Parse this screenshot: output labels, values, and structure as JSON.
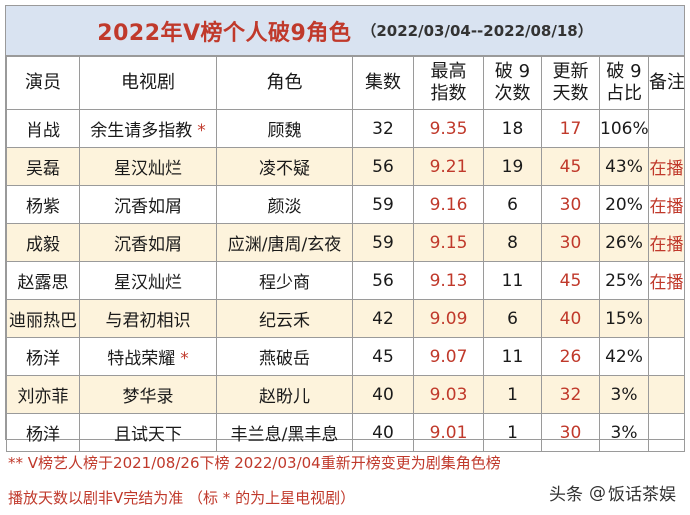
{
  "title": {
    "main": "2022年V榜个人破9角色",
    "range": "（2022/03/04--2022/08/18）"
  },
  "headers": {
    "actor": "演员",
    "drama": "电视剧",
    "role": "角色",
    "episodes": "集数",
    "peak_line1": "最高",
    "peak_line2": "指数",
    "times_line1": "破 9",
    "times_line2": "次数",
    "days_line1": "更新",
    "days_line2": "天数",
    "ratio_line1": "破 9",
    "ratio_line2": "占比",
    "note": "备注"
  },
  "rows": [
    {
      "actor": "肖战",
      "drama": "余生请多指教",
      "star": "*",
      "role": "顾魏",
      "episodes": "32",
      "peak": "9.35",
      "times": "18",
      "days": "17",
      "ratio": "106%",
      "note": ""
    },
    {
      "actor": "吴磊",
      "drama": "星汉灿烂",
      "star": "",
      "role": "凌不疑",
      "episodes": "56",
      "peak": "9.21",
      "times": "19",
      "days": "45",
      "ratio": "43%",
      "note": "在播"
    },
    {
      "actor": "杨紫",
      "drama": "沉香如屑",
      "star": "",
      "role": "颜淡",
      "episodes": "59",
      "peak": "9.16",
      "times": "6",
      "days": "30",
      "ratio": "20%",
      "note": "在播"
    },
    {
      "actor": "成毅",
      "drama": "沉香如屑",
      "star": "",
      "role": "应渊/唐周/玄夜",
      "episodes": "59",
      "peak": "9.15",
      "times": "8",
      "days": "30",
      "ratio": "26%",
      "note": "在播"
    },
    {
      "actor": "赵露思",
      "drama": "星汉灿烂",
      "star": "",
      "role": "程少商",
      "episodes": "56",
      "peak": "9.13",
      "times": "11",
      "days": "45",
      "ratio": "25%",
      "note": "在播"
    },
    {
      "actor": "迪丽热巴",
      "drama": "与君初相识",
      "star": "",
      "role": "纪云禾",
      "episodes": "42",
      "peak": "9.09",
      "times": "6",
      "days": "40",
      "ratio": "15%",
      "note": ""
    },
    {
      "actor": "杨洋",
      "drama": "特战荣耀",
      "star": "*",
      "role": "燕破岳",
      "episodes": "45",
      "peak": "9.07",
      "times": "11",
      "days": "26",
      "ratio": "42%",
      "note": ""
    },
    {
      "actor": "刘亦菲",
      "drama": "梦华录",
      "star": "",
      "role": "赵盼儿",
      "episodes": "40",
      "peak": "9.03",
      "times": "1",
      "days": "32",
      "ratio": "3%",
      "note": ""
    },
    {
      "actor": "杨洋",
      "drama": "且试天下",
      "star": "",
      "role": "丰兰息/黑丰息",
      "episodes": "40",
      "peak": "9.01",
      "times": "1",
      "days": "30",
      "ratio": "3%",
      "note": ""
    }
  ],
  "notes": {
    "line1": "** V榜艺人榜于2021/08/26下榜  2022/03/04重新开榜变更为剧集角色榜",
    "line2": "播放天数以剧非V完结为准  （标 * 的为上星电视剧）"
  },
  "watermark": {
    "prefix": "头条",
    "icon": "@",
    "name": "饭话茶娱"
  }
}
